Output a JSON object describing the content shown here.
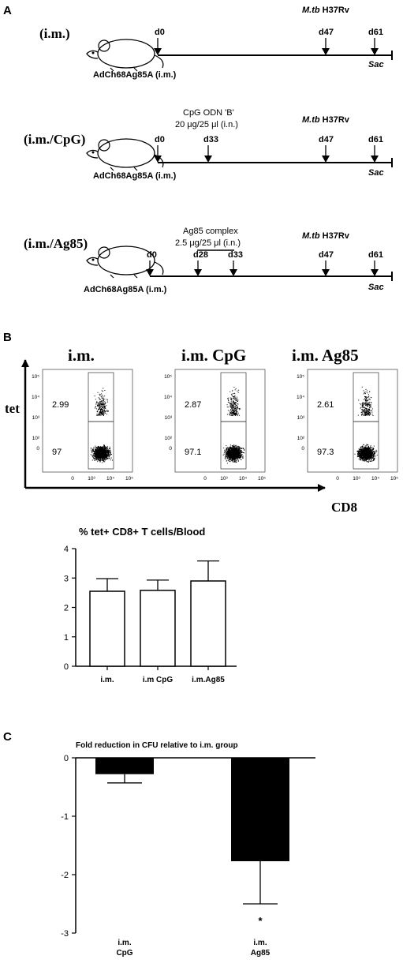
{
  "panels": {
    "a": {
      "label": "A",
      "schedules": [
        {
          "group": "(i.m.)",
          "vaccine": "AdCh68Ag85A (i.m.)",
          "challenge": {
            "strain_italic": "M.tb",
            "strain": "H37Rv"
          },
          "days": [
            "d0",
            "d47",
            "d61"
          ],
          "sac": "Sac",
          "boost_line1": "",
          "boost_line2": ""
        },
        {
          "group": "(i.m./CpG)",
          "vaccine": "AdCh68Ag85A (i.m.)",
          "challenge": {
            "strain_italic": "M.tb",
            "strain": "H37Rv"
          },
          "days": [
            "d0",
            "d33",
            "d47",
            "d61"
          ],
          "sac": "Sac",
          "boost_line1": "CpG ODN 'B'",
          "boost_line2": "20 μg/25 μl (i.n.)"
        },
        {
          "group": "(i.m./Ag85)",
          "vaccine": "AdCh68Ag85A (i.m.)",
          "challenge": {
            "strain_italic": "M.tb",
            "strain": "H37Rv"
          },
          "days": [
            "d0",
            "d28",
            "d33",
            "d47",
            "d61"
          ],
          "sac": "Sac",
          "boost_line1": "Ag85 complex",
          "boost_line2": "2.5 μg/25 μl (i.n.)"
        }
      ]
    },
    "b": {
      "label": "B",
      "y_marker": "tet",
      "x_marker": "CD8",
      "flow_plots": [
        {
          "title": "i.m.",
          "upper_pct": "2.99",
          "lower_pct": "97"
        },
        {
          "title": "i.m. CpG",
          "upper_pct": "2.87",
          "lower_pct": "97.1"
        },
        {
          "title": "i.m. Ag85",
          "upper_pct": "2.61",
          "lower_pct": "97.3"
        }
      ],
      "flow_ticks_y": [
        "10⁵",
        "10⁴",
        "10³",
        "10²",
        "0"
      ],
      "flow_ticks_x": [
        "0",
        "10³",
        "10⁴",
        "10⁵"
      ]
    },
    "c": {
      "label": "C"
    }
  },
  "chart_data": [
    {
      "type": "bar",
      "title": "% tet+ CD8+ T cells/Blood",
      "categories": [
        "i.m.",
        "i.m CpG",
        "i.m.Ag85"
      ],
      "values": [
        2.55,
        2.58,
        2.9
      ],
      "error_upper": [
        0.43,
        0.35,
        0.68
      ],
      "ylim": [
        0,
        4
      ],
      "yticks": [
        "0",
        "1",
        "2",
        "3",
        "4"
      ],
      "bar_color": "#ffffff",
      "grid": false
    },
    {
      "type": "bar",
      "title": "Fold reduction in CFU relative to i.m. group",
      "categories": [
        [
          "i.m.",
          "CpG"
        ],
        [
          "i.m.",
          "Ag85"
        ]
      ],
      "values": [
        -0.28,
        -1.77
      ],
      "error_lower": [
        0.15,
        0.73
      ],
      "ylim": [
        -3,
        0
      ],
      "yticks": [
        "0",
        "-1",
        "-2",
        "-3"
      ],
      "annotations": [
        "",
        "*"
      ],
      "bar_color": "#000000",
      "grid": false
    }
  ]
}
